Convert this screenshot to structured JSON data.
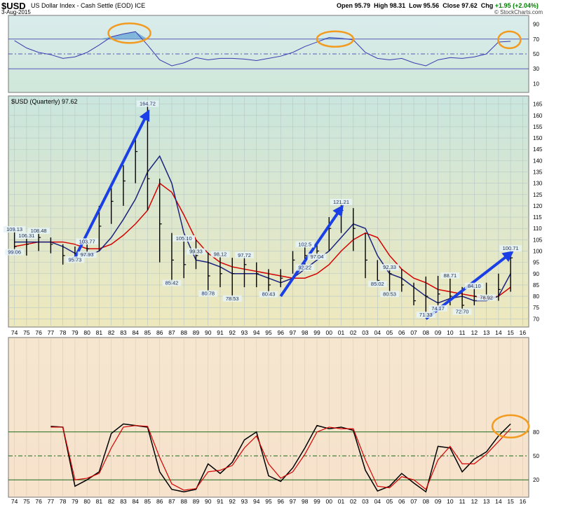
{
  "header": {
    "symbol": "$USD",
    "description": "US Dollar Index - Cash Settle (EOD)",
    "exchange": "ICE",
    "date": "3-Aug-2015",
    "open_label": "Open",
    "open": "95.79",
    "high_label": "High",
    "high": "98.31",
    "low_label": "Low",
    "low": "95.56",
    "close_label": "Close",
    "close": "97.62",
    "chg_label": "Chg",
    "chg": "+1.95 (+2.04%)",
    "logo": "© StockCharts.com"
  },
  "colors": {
    "rsi_bg_top": "#d9ecec",
    "rsi_bg_bottom": "#cfe7d9",
    "price_bg_top": "#c9e6de",
    "price_bg_bottom": "#efe8bd",
    "stoch_bg_top": "#f6e6cf",
    "stoch_bg_bottom": "#f7e2cc",
    "price_bar": "#000000",
    "ma_fast": "#1a237e",
    "ma_slow": "#d50000",
    "trend_arrow": "#1a3fe6",
    "highlight": "#f39b1f",
    "rsi_line": "#3a3ab0",
    "rsi_fill": "#6aa9d6"
  },
  "chart_data": [
    {
      "type": "line",
      "panel": "rsi",
      "y_ticks": [
        10,
        30,
        50,
        70,
        90
      ],
      "ylim": [
        0,
        100
      ],
      "reference_lines": [
        30,
        50,
        70
      ],
      "x": [
        1974,
        1975,
        1976,
        1977,
        1978,
        1979,
        1980,
        1981,
        1982,
        1983,
        1984,
        1985,
        1986,
        1987,
        1988,
        1989,
        1990,
        1991,
        1992,
        1993,
        1994,
        1995,
        1996,
        1997,
        1998,
        1999,
        2000,
        2001,
        2002,
        2003,
        2004,
        2005,
        2006,
        2007,
        2008,
        2009,
        2010,
        2011,
        2012,
        2013,
        2014,
        2015
      ],
      "values": [
        68,
        58,
        52,
        49,
        44,
        46,
        52,
        62,
        73,
        77,
        80,
        62,
        42,
        34,
        38,
        45,
        42,
        44,
        44,
        43,
        41,
        44,
        47,
        52,
        60,
        66,
        72,
        71,
        69,
        52,
        44,
        42,
        44,
        38,
        34,
        42,
        45,
        44,
        46,
        50,
        66,
        67
      ]
    },
    {
      "type": "ohlc",
      "panel": "price",
      "label": "$USD (Quarterly) 97.62",
      "ylim": [
        67,
        168
      ],
      "y_ticks": [
        70,
        75,
        80,
        85,
        90,
        95,
        100,
        105,
        110,
        115,
        120,
        125,
        130,
        135,
        140,
        145,
        150,
        155,
        160,
        165
      ],
      "x_ticks": [
        "74",
        "75",
        "76",
        "77",
        "78",
        "79",
        "80",
        "81",
        "82",
        "83",
        "84",
        "85",
        "86",
        "87",
        "88",
        "89",
        "90",
        "91",
        "92",
        "93",
        "94",
        "95",
        "96",
        "97",
        "98",
        "99",
        "00",
        "01",
        "02",
        "03",
        "04",
        "05",
        "06",
        "07",
        "08",
        "09",
        "10",
        "11",
        "12",
        "13",
        "14",
        "15",
        "16"
      ],
      "x": [
        1974,
        1975,
        1976,
        1977,
        1978,
        1979,
        1980,
        1981,
        1982,
        1983,
        1984,
        1985,
        1986,
        1987,
        1988,
        1989,
        1990,
        1991,
        1992,
        1993,
        1994,
        1995,
        1996,
        1997,
        1998,
        1999,
        2000,
        2001,
        2002,
        2003,
        2004,
        2005,
        2006,
        2007,
        2008,
        2009,
        2010,
        2011,
        2012,
        2013,
        2014,
        2015
      ],
      "close": [
        102,
        103,
        106,
        103,
        98,
        96,
        101,
        111,
        122,
        131,
        144,
        132,
        112,
        96,
        94,
        98,
        89,
        90,
        90,
        94,
        90,
        85,
        88,
        96,
        98,
        100,
        110,
        118,
        110,
        96,
        87,
        90,
        85,
        78,
        80,
        81,
        80,
        76,
        80,
        80,
        83,
        97
      ],
      "high": [
        109.13,
        106.31,
        108.48,
        106,
        103,
        102,
        103.77,
        120,
        130,
        138,
        150,
        164.72,
        132,
        108,
        105.1,
        105,
        99.33,
        98.12,
        97,
        97.72,
        95,
        92,
        92,
        100,
        102.5,
        104,
        115,
        121.21,
        119,
        108,
        96,
        92.33,
        92,
        86,
        88.71,
        89,
        88,
        84.1,
        86,
        86,
        90,
        100.71
      ],
      "low": [
        99.06,
        98,
        100,
        99,
        94,
        95.73,
        97.93,
        100,
        112,
        120,
        130,
        118,
        95,
        85.42,
        88,
        92,
        80.78,
        84,
        78.53,
        84,
        84,
        80.43,
        84,
        90,
        92.22,
        97.04,
        100,
        108,
        100,
        88,
        85.02,
        80.53,
        82,
        76,
        71.33,
        74.17,
        76,
        72.7,
        76,
        78.92,
        78,
        82
      ],
      "ma_fast": [
        104,
        104,
        104,
        104,
        102,
        99,
        98,
        100,
        106,
        114,
        123,
        135,
        142,
        130,
        108,
        96,
        95,
        93,
        90,
        90,
        90,
        88,
        86,
        88,
        92,
        96,
        100,
        106,
        112,
        110,
        98,
        90,
        88,
        84,
        80,
        77,
        79,
        80,
        78,
        78,
        80,
        90
      ],
      "ma_slow": [
        102,
        103,
        104,
        104,
        104,
        103,
        101,
        101,
        103,
        107,
        112,
        118,
        130,
        126,
        116,
        105,
        99,
        95,
        93,
        92,
        91,
        90,
        89,
        88,
        88,
        90,
        94,
        100,
        105,
        108,
        106,
        98,
        92,
        88,
        86,
        83,
        82,
        81,
        80,
        79,
        80,
        84
      ],
      "annotations": [
        {
          "label": "109.13",
          "x": 1974,
          "y": 109.13
        },
        {
          "label": "106.31",
          "x": 1975,
          "y": 106.31
        },
        {
          "label": "99.06",
          "x": 1974,
          "y": 99.06
        },
        {
          "label": "108.48",
          "x": 1976,
          "y": 108.48
        },
        {
          "label": "95.73",
          "x": 1979,
          "y": 95.73
        },
        {
          "label": "103.77",
          "x": 1980,
          "y": 103.77
        },
        {
          "label": "97.93",
          "x": 1980,
          "y": 97.93
        },
        {
          "label": "164.72",
          "x": 1985,
          "y": 164.72
        },
        {
          "label": "85.42",
          "x": 1987,
          "y": 85.42
        },
        {
          "label": "105.10",
          "x": 1988,
          "y": 105.1
        },
        {
          "label": "99.33",
          "x": 1989,
          "y": 99.33
        },
        {
          "label": "98.12",
          "x": 1991,
          "y": 98.12
        },
        {
          "label": "80.78",
          "x": 1990,
          "y": 80.78
        },
        {
          "label": "97.72",
          "x": 1993,
          "y": 97.72
        },
        {
          "label": "78.53",
          "x": 1992,
          "y": 78.53
        },
        {
          "label": "80.43",
          "x": 1995,
          "y": 80.43
        },
        {
          "label": "102.5",
          "x": 1998,
          "y": 102.5
        },
        {
          "label": "97.04",
          "x": 1999,
          "y": 97.04
        },
        {
          "label": "92.22",
          "x": 1998,
          "y": 92.22
        },
        {
          "label": "121.21",
          "x": 2001,
          "y": 121.21
        },
        {
          "label": "92.33",
          "x": 2005,
          "y": 92.33
        },
        {
          "label": "85.02",
          "x": 2004,
          "y": 85.02
        },
        {
          "label": "80.53",
          "x": 2005,
          "y": 80.53
        },
        {
          "label": "88.71",
          "x": 2010,
          "y": 88.71
        },
        {
          "label": "71.33",
          "x": 2008,
          "y": 71.33
        },
        {
          "label": "74.17",
          "x": 2009,
          "y": 74.17
        },
        {
          "label": "72.70",
          "x": 2011,
          "y": 72.7
        },
        {
          "label": "84.10",
          "x": 2012,
          "y": 84.1
        },
        {
          "label": "78.92",
          "x": 2013,
          "y": 78.92
        },
        {
          "label": "100.71",
          "x": 2015,
          "y": 100.71
        }
      ],
      "trend_arrows": [
        {
          "from": [
            1979,
            97
          ],
          "to": [
            1985,
            161
          ]
        },
        {
          "from": [
            1996,
            80
          ],
          "to": [
            2001,
            119
          ]
        },
        {
          "from": [
            2008,
            70
          ],
          "to": [
            2015,
            99
          ]
        }
      ]
    },
    {
      "type": "line",
      "panel": "stochastics",
      "y_ticks": [
        20,
        50,
        80
      ],
      "ylim": [
        0,
        100
      ],
      "reference_lines": [
        20,
        50,
        80
      ],
      "x_ticks": [
        "74",
        "75",
        "76",
        "77",
        "78",
        "79",
        "80",
        "81",
        "82",
        "83",
        "84",
        "85",
        "86",
        "87",
        "88",
        "89",
        "90",
        "91",
        "92",
        "93",
        "94",
        "95",
        "96",
        "97",
        "98",
        "99",
        "00",
        "01",
        "02",
        "03",
        "04",
        "05",
        "06",
        "07",
        "08",
        "09",
        "10",
        "11",
        "12",
        "13",
        "14",
        "15",
        "16"
      ],
      "x": [
        1977,
        1978,
        1979,
        1980,
        1981,
        1982,
        1983,
        1984,
        1985,
        1986,
        1987,
        1988,
        1989,
        1990,
        1991,
        1992,
        1993,
        1994,
        1995,
        1996,
        1997,
        1998,
        1999,
        2000,
        2001,
        2002,
        2003,
        2004,
        2005,
        2006,
        2007,
        2008,
        2009,
        2010,
        2011,
        2012,
        2013,
        2014,
        2015
      ],
      "series": [
        {
          "values": [
            87,
            86,
            12,
            20,
            30,
            78,
            90,
            88,
            86,
            30,
            8,
            5,
            8,
            40,
            28,
            42,
            70,
            80,
            25,
            18,
            35,
            60,
            88,
            84,
            86,
            82,
            32,
            6,
            12,
            28,
            16,
            5,
            62,
            60,
            30,
            46,
            55,
            75,
            90
          ]
        },
        {
          "values": [
            86,
            86,
            20,
            22,
            28,
            60,
            86,
            88,
            87,
            48,
            15,
            7,
            9,
            30,
            32,
            38,
            60,
            75,
            40,
            22,
            30,
            52,
            80,
            86,
            84,
            84,
            45,
            12,
            10,
            24,
            20,
            8,
            45,
            62,
            40,
            40,
            52,
            68,
            84
          ]
        }
      ]
    }
  ]
}
